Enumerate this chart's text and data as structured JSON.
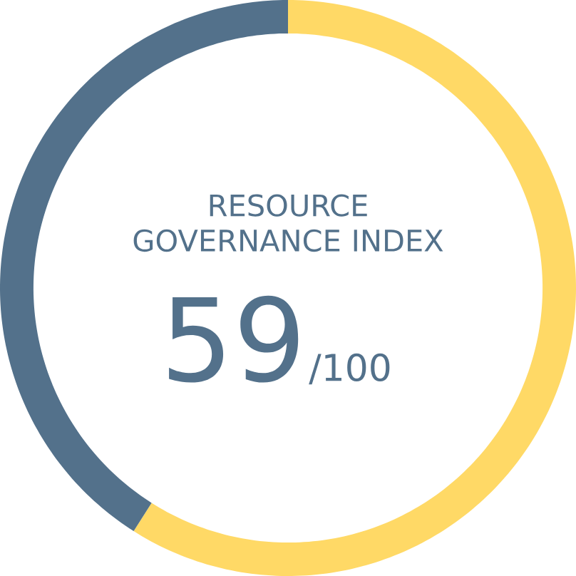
{
  "chart_data": {
    "type": "donut",
    "title": "RESOURCE GOVERNANCE INDEX",
    "categories": [
      null,
      null
    ],
    "values": [
      59,
      41
    ],
    "colors": [
      "#ffd966",
      "#53718b"
    ],
    "annotations": [
      "59",
      "/100"
    ]
  }
}
